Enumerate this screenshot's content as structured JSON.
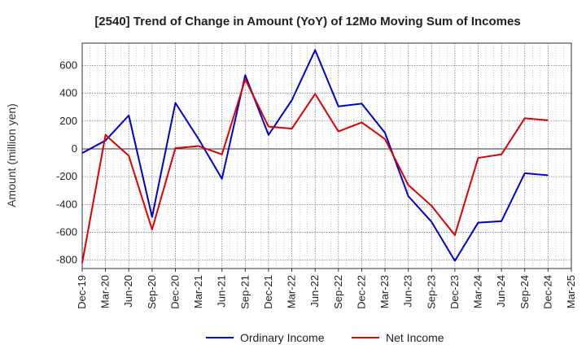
{
  "chart_data": {
    "type": "line",
    "title": "[2540]  Trend of Change in Amount (YoY) of 12Mo Moving Sum of Incomes",
    "xlabel": "",
    "ylabel": "Amount (million yen)",
    "ylim": [
      -860,
      760
    ],
    "yticks": [
      -800,
      -600,
      -400,
      -200,
      0,
      200,
      400,
      600
    ],
    "grid": true,
    "legend_position": "bottom-center",
    "categories": [
      "Dec-19",
      "Mar-20",
      "Jun-20",
      "Sep-20",
      "Dec-20",
      "Mar-21",
      "Jun-21",
      "Sep-21",
      "Dec-21",
      "Mar-22",
      "Jun-22",
      "Sep-22",
      "Dec-22",
      "Mar-23",
      "Jun-23",
      "Sep-23",
      "Dec-23",
      "Mar-24",
      "Jun-24",
      "Sep-24",
      "Dec-24",
      "Mar-25"
    ],
    "series": [
      {
        "name": "Ordinary Income",
        "color": "#0000cc",
        "values": [
          -30,
          60,
          240,
          -490,
          330,
          70,
          -215,
          530,
          100,
          350,
          710,
          305,
          325,
          115,
          -340,
          -525,
          -805,
          -530,
          -520,
          -175,
          -190,
          null
        ]
      },
      {
        "name": "Net Income",
        "color": "#dd0000",
        "values": [
          -820,
          100,
          -50,
          -580,
          5,
          20,
          -40,
          500,
          160,
          145,
          395,
          125,
          190,
          70,
          -260,
          -410,
          -620,
          -65,
          -40,
          220,
          205,
          null
        ]
      }
    ]
  }
}
